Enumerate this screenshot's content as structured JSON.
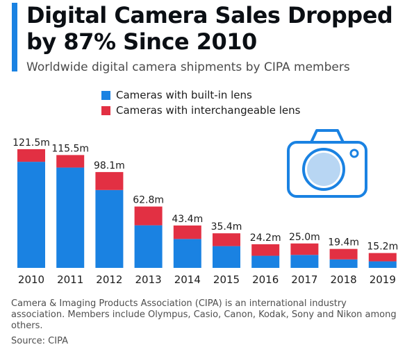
{
  "header": {
    "title": "Digital Camera Sales Dropped by 87% Since 2010",
    "subtitle": "Worldwide digital camera shipments by CIPA members"
  },
  "colors": {
    "accent": "#1a82e2",
    "built_in": "#1a82e2",
    "interchangeable": "#e23043",
    "icon": "#1a82e2",
    "icon_lens": "#b8d6f3"
  },
  "icons": {
    "camera": "camera-icon"
  },
  "chart_data": {
    "type": "bar",
    "stacked": true,
    "categories": [
      "2010",
      "2011",
      "2012",
      "2013",
      "2014",
      "2015",
      "2016",
      "2017",
      "2018",
      "2019"
    ],
    "totals": [
      121.5,
      115.5,
      98.1,
      62.8,
      43.4,
      35.4,
      24.2,
      25.0,
      19.4,
      15.2
    ],
    "total_labels": [
      "121.5m",
      "115.5m",
      "98.1m",
      "62.8m",
      "43.4m",
      "35.4m",
      "24.2m",
      "25.0m",
      "19.4m",
      "15.2m"
    ],
    "series": [
      {
        "name": "Cameras with built-in lens",
        "values": [
          108.6,
          102.7,
          79.7,
          43.6,
          29.6,
          22.3,
          12.4,
          13.3,
          8.7,
          6.7
        ]
      },
      {
        "name": "Cameras with interchangeable lens",
        "values": [
          12.9,
          12.8,
          18.4,
          19.2,
          13.8,
          13.1,
          11.8,
          11.7,
          10.7,
          8.5
        ]
      }
    ],
    "ylim": [
      0,
      130
    ],
    "grid": false,
    "legend": "top-left"
  },
  "footer": {
    "note": "Camera & Imaging Products Association (CIPA) is an international industry association. Members include Olympus, Casio, Canon, Kodak, Sony and Nikon among others.",
    "source": "Source: CIPA"
  }
}
